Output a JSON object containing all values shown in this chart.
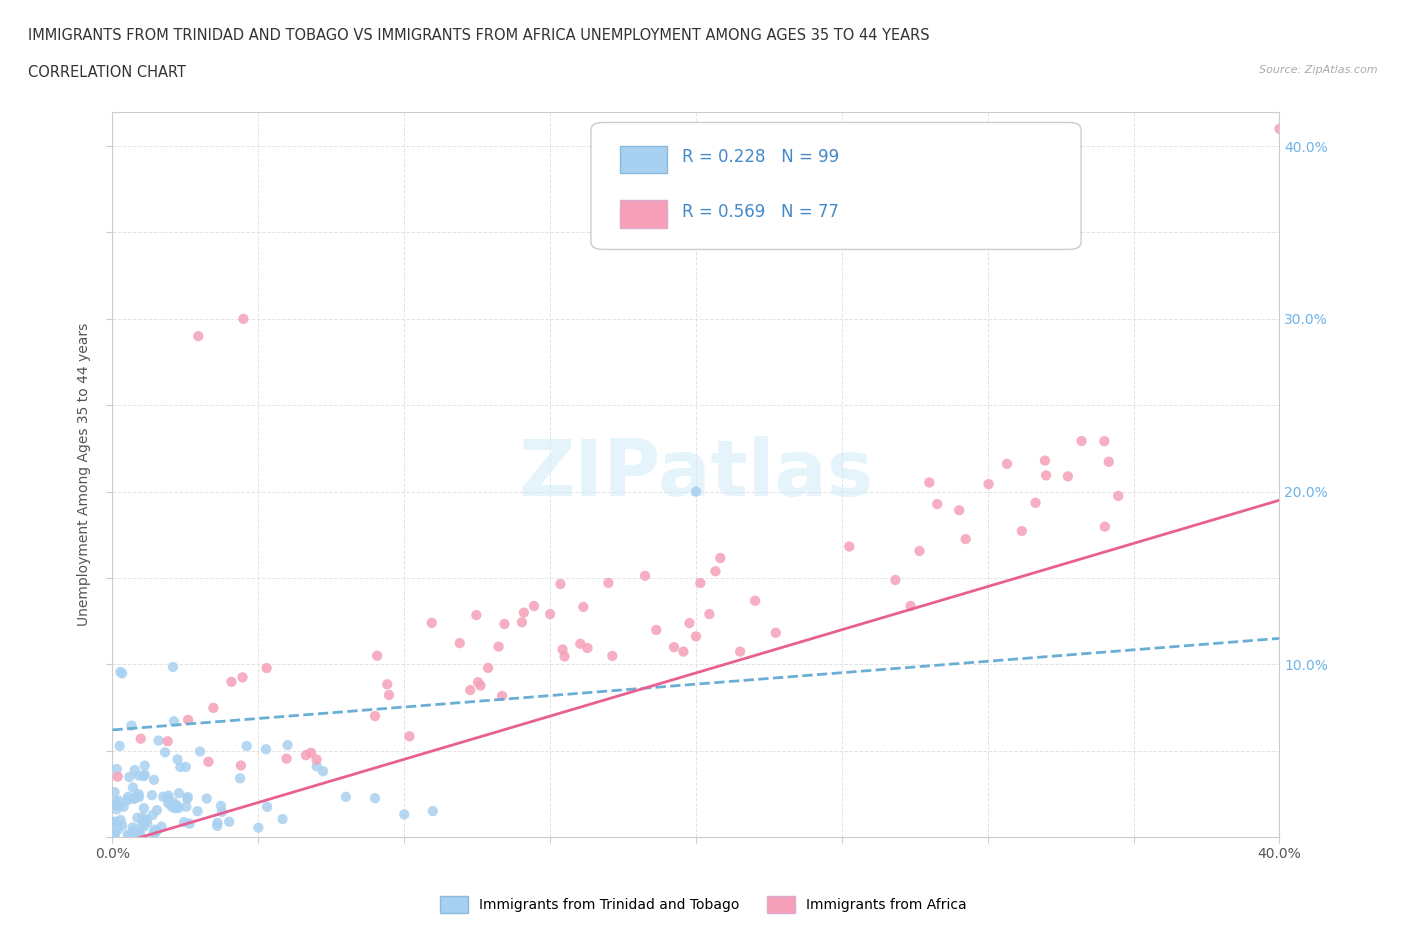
{
  "title_line1": "IMMIGRANTS FROM TRINIDAD AND TOBAGO VS IMMIGRANTS FROM AFRICA UNEMPLOYMENT AMONG AGES 35 TO 44 YEARS",
  "title_line2": "CORRELATION CHART",
  "source_text": "Source: ZipAtlas.com",
  "ylabel": "Unemployment Among Ages 35 to 44 years",
  "xlim": [
    0.0,
    0.4
  ],
  "ylim": [
    0.0,
    0.42
  ],
  "color_tt": "#a8d0f0",
  "color_af": "#f5a0b8",
  "line_tt": "#6aaed6",
  "line_af": "#e86090",
  "R_tt": 0.228,
  "N_tt": 99,
  "R_af": 0.569,
  "N_af": 77,
  "watermark": "ZIPatlas",
  "legend_label_tt": "Immigrants from Trinidad and Tobago",
  "legend_label_af": "Immigrants from Africa",
  "tt_line_x0": 0.0,
  "tt_line_x1": 0.4,
  "tt_line_y0": 0.062,
  "tt_line_y1": 0.115,
  "af_line_x0": 0.0,
  "af_line_x1": 0.4,
  "af_line_y0": -0.005,
  "af_line_y1": 0.195
}
